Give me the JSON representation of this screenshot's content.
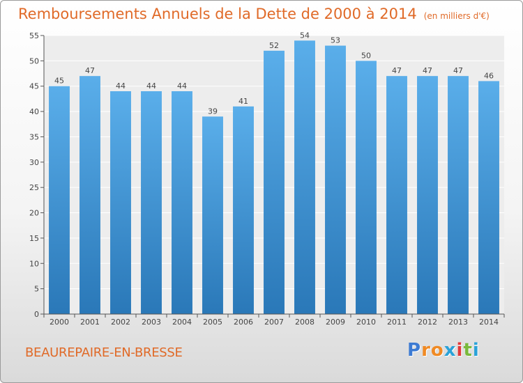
{
  "header": {
    "title": "Remboursements Annuels de la Dette de 2000 à 2014",
    "subtitle": "(en milliers d'€)"
  },
  "footer": {
    "place": "BEAUREPAIRE-EN-BRESSE",
    "logo": "Proxiti",
    "logo_colors": [
      "#3d7bd3",
      "#f08a24",
      "#f08a24",
      "#2aa2d8",
      "#e23a3a",
      "#7ab93c",
      "#2aa2d8"
    ]
  },
  "chart_data": {
    "type": "bar",
    "title": "Remboursements Annuels de la Dette de 2000 à 2014",
    "categories": [
      "2000",
      "2001",
      "2002",
      "2003",
      "2004",
      "2005",
      "2006",
      "2007",
      "2008",
      "2009",
      "2010",
      "2011",
      "2012",
      "2013",
      "2014"
    ],
    "values": [
      45,
      47,
      44,
      44,
      44,
      39,
      41,
      52,
      54,
      53,
      50,
      47,
      47,
      47,
      46
    ],
    "ylim": [
      0,
      55
    ],
    "yticks": [
      0,
      5,
      10,
      15,
      20,
      25,
      30,
      35,
      40,
      45,
      50,
      55
    ],
    "grid": true,
    "bar_color_top": "#5aaeea",
    "bar_color_bottom": "#2a78b8"
  }
}
